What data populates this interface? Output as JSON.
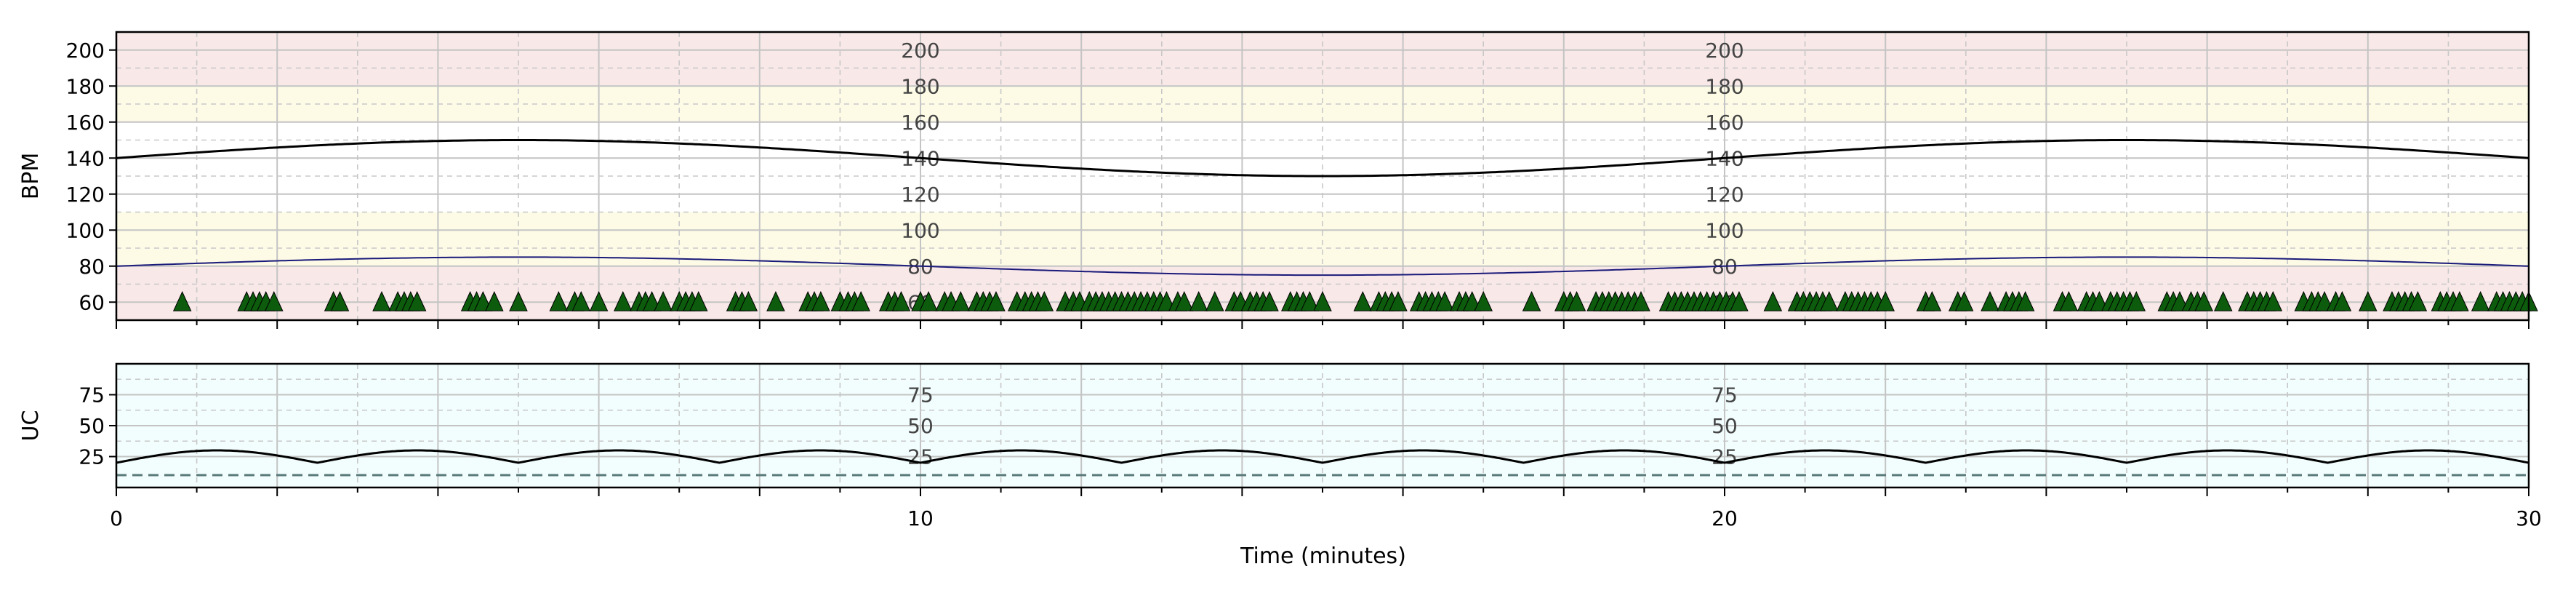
{
  "chart_data": {
    "type": "line",
    "x_axis": {
      "label": "Time (minutes)",
      "range": [
        0,
        30
      ],
      "major_ticks": [
        0,
        10,
        20,
        30
      ],
      "minor_step": 1
    },
    "fhr_panel": {
      "ylabel": "BPM",
      "ylim": [
        50,
        210
      ],
      "y_ticks": [
        60,
        80,
        100,
        120,
        140,
        160,
        180,
        200
      ],
      "inner_labels": [
        "200",
        "180",
        "160",
        "140",
        "120",
        "100",
        "80",
        "60"
      ],
      "inner_label_x": [
        10,
        20
      ],
      "bands": [
        {
          "from": 50,
          "to": 80,
          "color": "#f9e8e8"
        },
        {
          "from": 80,
          "to": 110,
          "color": "#fdfbe6"
        },
        {
          "from": 110,
          "to": 160,
          "color": "#ffffff"
        },
        {
          "from": 160,
          "to": 180,
          "color": "#fdfbe6"
        },
        {
          "from": 180,
          "to": 210,
          "color": "#f9e8e8"
        }
      ],
      "fhr_series": {
        "baseline": 140,
        "amplitude": 10,
        "period_min": 20,
        "phase": "sin",
        "color": "#000000"
      },
      "maternal_series": {
        "baseline": 80,
        "amplitude": 5,
        "period_min": 20,
        "phase": "sin",
        "color": "#1a1a7a"
      },
      "markers": {
        "y": 60,
        "color": "#0d5c0d",
        "x": [
          0.82,
          1.62,
          1.7,
          1.78,
          1.86,
          1.96,
          2.7,
          2.78,
          3.3,
          3.5,
          3.58,
          3.66,
          3.74,
          4.4,
          4.48,
          4.56,
          4.7,
          5.0,
          5.5,
          5.7,
          5.78,
          6.0,
          6.3,
          6.5,
          6.58,
          6.66,
          6.8,
          7.0,
          7.08,
          7.16,
          7.24,
          7.7,
          7.78,
          7.86,
          8.2,
          8.6,
          8.68,
          8.76,
          9.0,
          9.1,
          9.18,
          9.26,
          9.6,
          9.68,
          9.76,
          10.0,
          10.1,
          10.3,
          10.38,
          10.5,
          10.7,
          10.78,
          10.86,
          10.94,
          11.2,
          11.3,
          11.38,
          11.46,
          11.54,
          11.8,
          11.9,
          11.98,
          12.1,
          12.18,
          12.26,
          12.34,
          12.42,
          12.5,
          12.58,
          12.66,
          12.74,
          12.82,
          12.9,
          12.98,
          13.06,
          13.2,
          13.28,
          13.46,
          13.66,
          13.9,
          13.98,
          14.1,
          14.18,
          14.26,
          14.34,
          14.6,
          14.68,
          14.76,
          14.84,
          15.0,
          15.5,
          15.7,
          15.78,
          15.86,
          15.94,
          16.2,
          16.28,
          16.36,
          16.44,
          16.52,
          16.7,
          16.78,
          16.86,
          17.0,
          17.6,
          18.0,
          18.08,
          18.16,
          18.4,
          18.48,
          18.56,
          18.64,
          18.72,
          18.8,
          18.88,
          18.96,
          19.3,
          19.38,
          19.46,
          19.54,
          19.62,
          19.7,
          19.78,
          19.86,
          19.94,
          20.02,
          20.1,
          20.18,
          20.6,
          20.9,
          20.98,
          21.06,
          21.14,
          21.22,
          21.3,
          21.5,
          21.58,
          21.66,
          21.74,
          21.82,
          21.9,
          22.0,
          22.5,
          22.58,
          22.9,
          22.98,
          23.3,
          23.5,
          23.58,
          23.66,
          23.74,
          24.2,
          24.28,
          24.5,
          24.58,
          24.66,
          24.8,
          24.88,
          24.96,
          25.04,
          25.12,
          25.5,
          25.58,
          25.66,
          25.8,
          25.88,
          25.96,
          26.2,
          26.5,
          26.58,
          26.66,
          26.74,
          26.82,
          27.2,
          27.3,
          27.38,
          27.46,
          27.6,
          27.68,
          28.0,
          28.3,
          28.38,
          28.46,
          28.54,
          28.62,
          28.9,
          28.98,
          29.06,
          29.14,
          29.4,
          29.6,
          29.68,
          29.76,
          29.84,
          29.92,
          30.0
        ]
      }
    },
    "uc_panel": {
      "ylabel": "UC",
      "ylim": [
        0,
        100
      ],
      "y_ticks": [
        25,
        50,
        75
      ],
      "inner_labels": [
        "75",
        "50",
        "25"
      ],
      "inner_label_x": [
        10,
        20
      ],
      "band_color": "#f2fdfd",
      "uc_series": {
        "baseline": 20,
        "amplitude": 10,
        "period_min": 2.5,
        "shape": "abs-sin",
        "color": "#000000"
      },
      "threshold": {
        "y": 10,
        "color": "#5a7a7a",
        "style": "dashed"
      }
    }
  }
}
